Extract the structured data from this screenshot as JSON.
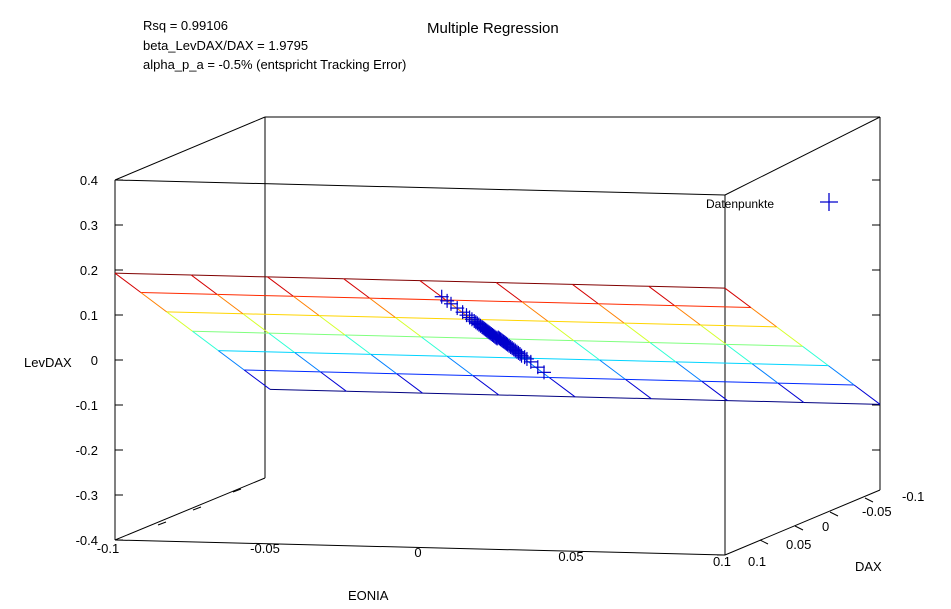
{
  "chart_data": {
    "type": "scatter",
    "title": "Multiple Regression",
    "stats": [
      "Rsq = 0.99106",
      "beta_LevDAX/DAX = 1.9795",
      "alpha_p_a = -0.5%  (entspricht Tracking Error)"
    ],
    "zlabel": "LevDAX",
    "xlabel": "EONIA",
    "ylabel": "DAX",
    "z_ticks": [
      "0.4",
      "0.3",
      "0.2",
      "0.1",
      "0",
      "-0.1",
      "-0.2",
      "-0.3",
      "-0.4"
    ],
    "x_ticks": [
      "-0.1",
      "-0.05",
      "0",
      "0.05",
      "0.1"
    ],
    "y_ticks": [
      "0.1",
      "0.05",
      "0",
      "-0.05",
      "-0.1"
    ],
    "zlim": [
      -0.4,
      0.4
    ],
    "xlim": [
      -0.1,
      0.1
    ],
    "ylim": [
      -0.1,
      0.1
    ],
    "legend": {
      "label": "Datenpunkte",
      "position": "top-right",
      "marker": "+",
      "color": "#0000cc"
    },
    "regression_plane": {
      "formula": "LevDAX = -0.5% + 1.9795 * DAX",
      "intercept": -0.005,
      "slope_dax": 1.9795,
      "grid": "8 x 6",
      "colormap": "jet"
    },
    "data_points": [
      {
        "dax": -0.06,
        "levdax": -0.121
      },
      {
        "dax": -0.052,
        "levdax": -0.104
      },
      {
        "dax": -0.043,
        "levdax": -0.086
      },
      {
        "dax": -0.038,
        "levdax": -0.076
      },
      {
        "dax": -0.035,
        "levdax": -0.07
      },
      {
        "dax": -0.031,
        "levdax": -0.064
      },
      {
        "dax": -0.029,
        "levdax": -0.059
      },
      {
        "dax": -0.027,
        "levdax": -0.055
      },
      {
        "dax": -0.025,
        "levdax": -0.051
      },
      {
        "dax": -0.023,
        "levdax": -0.047
      },
      {
        "dax": -0.021,
        "levdax": -0.043
      },
      {
        "dax": -0.019,
        "levdax": -0.039
      },
      {
        "dax": -0.017,
        "levdax": -0.035
      },
      {
        "dax": -0.015,
        "levdax": -0.031
      },
      {
        "dax": -0.013,
        "levdax": -0.027
      },
      {
        "dax": -0.0115,
        "levdax": -0.024
      },
      {
        "dax": -0.01,
        "levdax": -0.021
      },
      {
        "dax": -0.0085,
        "levdax": -0.018
      },
      {
        "dax": -0.007,
        "levdax": -0.015
      },
      {
        "dax": -0.0055,
        "levdax": -0.012
      },
      {
        "dax": -0.004,
        "levdax": -0.009
      },
      {
        "dax": -0.0025,
        "levdax": -0.006
      },
      {
        "dax": -0.001,
        "levdax": -0.003
      },
      {
        "dax": 0.0005,
        "levdax": -0.004
      },
      {
        "dax": 0.002,
        "levdax": -0.001
      },
      {
        "dax": 0.0035,
        "levdax": 0.002
      },
      {
        "dax": 0.005,
        "levdax": 0.005
      },
      {
        "dax": 0.0065,
        "levdax": 0.008
      },
      {
        "dax": 0.008,
        "levdax": 0.011
      },
      {
        "dax": 0.0095,
        "levdax": 0.014
      },
      {
        "dax": 0.011,
        "levdax": 0.017
      },
      {
        "dax": 0.0125,
        "levdax": 0.02
      },
      {
        "dax": 0.014,
        "levdax": 0.023
      },
      {
        "dax": 0.0155,
        "levdax": 0.026
      },
      {
        "dax": 0.017,
        "levdax": 0.029
      },
      {
        "dax": 0.0185,
        "levdax": 0.032
      },
      {
        "dax": 0.02,
        "levdax": 0.035
      },
      {
        "dax": 0.022,
        "levdax": 0.039
      },
      {
        "dax": 0.024,
        "levdax": 0.043
      },
      {
        "dax": 0.026,
        "levdax": 0.047
      },
      {
        "dax": 0.028,
        "levdax": 0.051
      },
      {
        "dax": 0.03,
        "levdax": 0.055
      },
      {
        "dax": 0.033,
        "levdax": 0.061
      },
      {
        "dax": 0.036,
        "levdax": 0.067
      },
      {
        "dax": 0.04,
        "levdax": 0.075
      },
      {
        "dax": 0.045,
        "levdax": 0.085
      },
      {
        "dax": 0.052,
        "levdax": 0.099
      },
      {
        "dax": 0.06,
        "levdax": 0.114
      },
      {
        "dax": 0.065,
        "levdax": 0.124
      },
      {
        "dax": 0.072,
        "levdax": 0.138
      }
    ]
  }
}
